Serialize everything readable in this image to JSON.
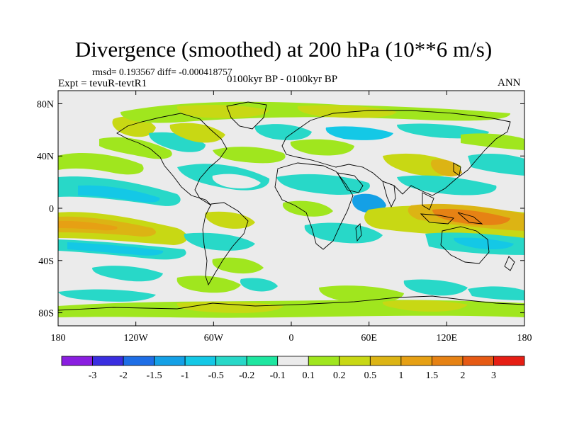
{
  "title": "Divergence (smoothed) at 200 hPa (10**6 m/s)",
  "stats": "rmsd= 0.193567 diff= -0.000418757",
  "experiment": "Expt = tevuR-tevtR1",
  "period": "0100kyr BP - 0100kyr BP",
  "season": "ANN",
  "lat_labels": [
    "80N",
    "40N",
    "0",
    "40S",
    "80S"
  ],
  "lat_values": [
    80,
    40,
    0,
    -40,
    -80
  ],
  "lon_labels": [
    "180",
    "120W",
    "60W",
    "0",
    "60E",
    "120E",
    "180"
  ],
  "lon_values": [
    -180,
    -120,
    -60,
    0,
    60,
    120,
    180
  ],
  "colorbar": {
    "colors": [
      "#8a1ee0",
      "#3a2ee0",
      "#1e6ee6",
      "#14a0e6",
      "#14c8e6",
      "#28d8c8",
      "#1ee6a0",
      "#ebebeb",
      "#a0e61e",
      "#c8d814",
      "#dcb414",
      "#e6a014",
      "#e68214",
      "#e65a14",
      "#e61e14"
    ],
    "labels": [
      "-3",
      "-2",
      "-1.5",
      "-1",
      "-0.5",
      "-0.2",
      "-0.1",
      "0.1",
      "0.2",
      "0.5",
      "1",
      "1.5",
      "2",
      "3"
    ]
  },
  "colors": {
    "background_field": "#ebebeb",
    "positive_weak": "#a0e61e",
    "positive_mid": "#c8d814",
    "positive_strong": "#dcb414",
    "positive_very_strong": "#e68214",
    "negative_weak": "#1ee6a0",
    "negative_mid": "#28d8c8",
    "negative_strong": "#14c8e6",
    "negative_very_strong": "#14a0e6"
  }
}
